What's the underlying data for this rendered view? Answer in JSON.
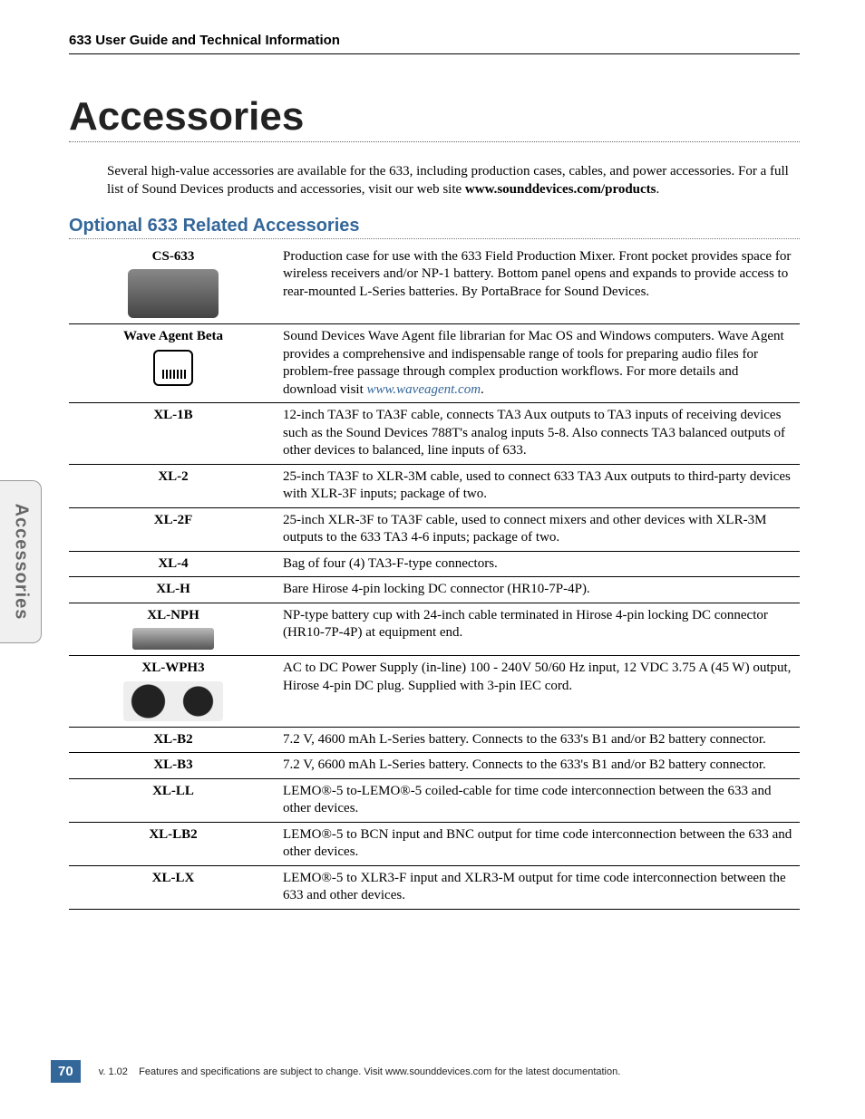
{
  "header": "633 User Guide and Technical Information",
  "title": "Accessories",
  "intro_text_1": "Several high-value accessories are available for the 633, including production cases, cables, and power accessories. For a full list of Sound Devices products and accessories, visit our web site ",
  "intro_bold": "www.sounddevices.com/products",
  "intro_text_2": ".",
  "section": "Optional 633 Related Accessories",
  "side_tab": "Accessories",
  "page_number": "70",
  "footer_version": "v. 1.02",
  "footer_text": "Features and specifications are subject to change. Visit www.sounddevices.com for the latest documentation.",
  "rows": {
    "r0": {
      "name": "CS-633",
      "desc": "Production case for use with the 633 Field Production Mixer. Front pocket provides space for wireless receivers and/or NP-1 battery. Bottom panel opens and expands to provide access to rear-mounted L-Series batteries. By PortaBrace for Sound Devices."
    },
    "r1": {
      "name": "Wave Agent Beta",
      "desc_a": "Sound Devices Wave Agent file librarian for Mac OS and Windows computers. Wave Agent provides a comprehensive and indispensable range of tools for preparing audio files for problem-free passage through complex production workflows. For more details and download visit ",
      "link": "www.waveagent.com",
      "desc_b": "."
    },
    "r2": {
      "name": "XL-1B",
      "desc": "12-inch TA3F to TA3F cable, connects TA3 Aux outputs to TA3 inputs of receiving devices such as the Sound Devices 788T's analog inputs 5-8. Also connects TA3 balanced outputs of other devices to balanced, line inputs of 633."
    },
    "r3": {
      "name": "XL-2",
      "desc": "25-inch TA3F to XLR-3M cable, used to connect 633 TA3 Aux outputs to third-party devices with XLR-3F inputs; package of two."
    },
    "r4": {
      "name": "XL-2F",
      "desc": "25-inch XLR-3F to TA3F cable, used to connect mixers and other devices with XLR-3M outputs to the 633 TA3 4-6 inputs; package of two."
    },
    "r5": {
      "name": "XL-4",
      "desc": "Bag of four (4) TA3-F-type connectors."
    },
    "r6": {
      "name": "XL-H",
      "desc": "Bare Hirose 4-pin locking DC connector (HR10-7P-4P)."
    },
    "r7": {
      "name": "XL-NPH",
      "desc": "NP-type battery cup with 24-inch cable terminated in Hirose 4-pin locking DC connector (HR10-7P-4P) at equipment end."
    },
    "r8": {
      "name": "XL-WPH3",
      "desc": "AC to DC Power Supply (in-line) 100 - 240V 50/60 Hz input, 12 VDC 3.75 A (45 W) output, Hirose 4-pin DC plug. Supplied with 3-pin IEC cord."
    },
    "r9": {
      "name": "XL-B2",
      "desc": "7.2 V, 4600 mAh L-Series battery. Connects to the 633's B1 and/or B2 battery connector."
    },
    "r10": {
      "name": "XL-B3",
      "desc": "7.2 V, 6600 mAh L-Series battery. Connects to the 633's B1 and/or B2 battery connector."
    },
    "r11": {
      "name": "XL-LL",
      "desc": "LEMO®-5 to-LEMO®-5 coiled-cable for time code interconnection between the 633 and other devices."
    },
    "r12": {
      "name": "XL-LB2",
      "desc": "LEMO®-5 to BCN input and BNC output for time code interconnection between the 633 and other devices."
    },
    "r13": {
      "name": "XL-LX",
      "desc": "LEMO®-5 to XLR3-F input and XLR3-M output for time code interconnection between the 633 and other devices."
    }
  }
}
